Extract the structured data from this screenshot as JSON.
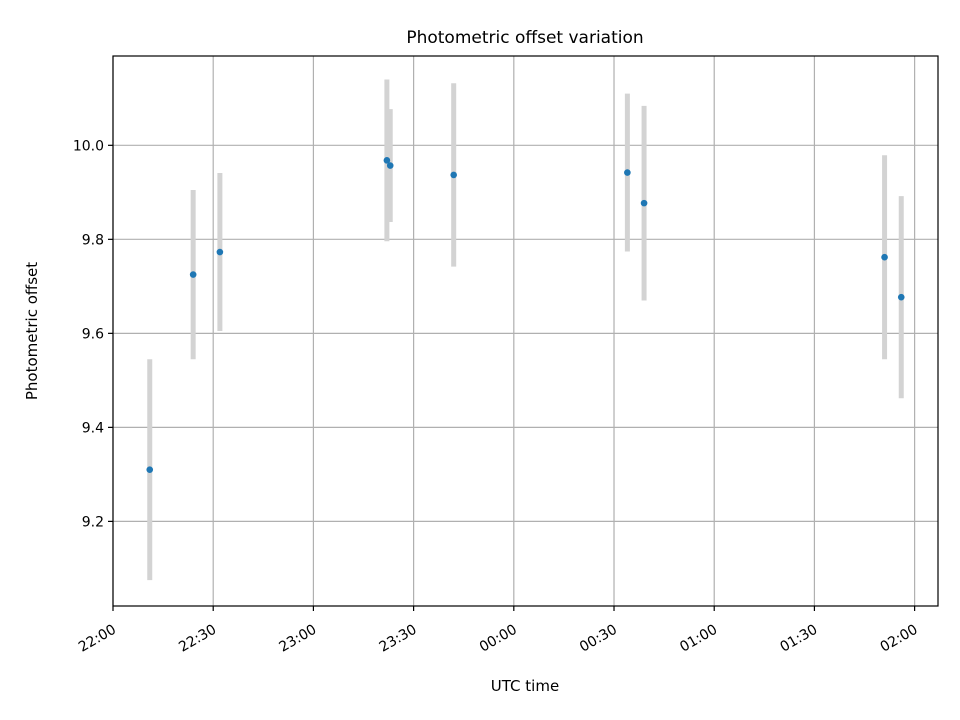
{
  "chart_data": {
    "type": "scatter",
    "title": "Photometric offset variation",
    "xlabel": "UTC time",
    "ylabel": "Photometric offset",
    "grid": true,
    "x_units": "UTC time (hh:mm), night crossing midnight",
    "x_ticks": [
      "22:00",
      "22:30",
      "23:00",
      "23:30",
      "00:00",
      "00:30",
      "01:00",
      "01:30",
      "02:00"
    ],
    "y_ticks": [
      "9.2",
      "9.4",
      "9.6",
      "9.8",
      "10.0"
    ],
    "xlim": [
      "22:00",
      "02:07"
    ],
    "ylim": [
      9.02,
      10.19
    ],
    "marker_color": "#1f77b4",
    "errorbar_color": "#d3d3d3",
    "points": [
      {
        "x": "22:11",
        "y": 9.31,
        "err": 0.235
      },
      {
        "x": "22:24",
        "y": 9.725,
        "err": 0.18
      },
      {
        "x": "22:32",
        "y": 9.773,
        "err": 0.168
      },
      {
        "x": "23:22",
        "y": 9.968,
        "err": 0.172
      },
      {
        "x": "23:23",
        "y": 9.957,
        "err": 0.12
      },
      {
        "x": "23:42",
        "y": 9.937,
        "err": 0.195
      },
      {
        "x": "00:34",
        "y": 9.942,
        "err": 0.168
      },
      {
        "x": "00:39",
        "y": 9.877,
        "err": 0.207
      },
      {
        "x": "01:51",
        "y": 9.762,
        "err": 0.217
      },
      {
        "x": "01:56",
        "y": 9.677,
        "err": 0.215
      }
    ]
  }
}
